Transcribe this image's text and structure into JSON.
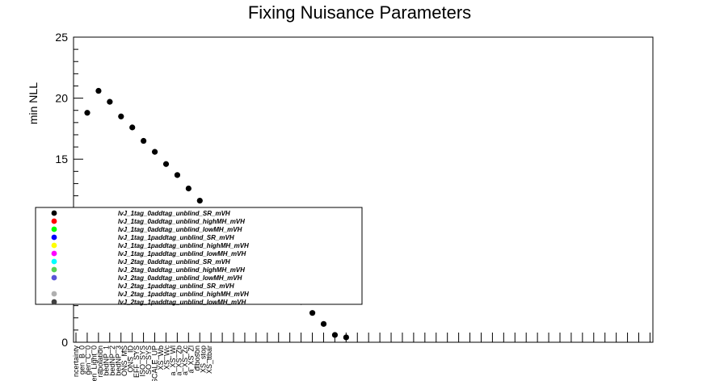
{
  "chart_data": {
    "type": "scatter",
    "title": "Fixing Nuisance Parameters",
    "ylabel": "min NLL",
    "xlabel": "",
    "ylim": [
      0,
      25
    ],
    "yticks": [
      0,
      5,
      10,
      15,
      20,
      25
    ],
    "categories": [
      "ncertainty",
      "gen_B_0",
      "gen_C_0",
      "gen_Light_0",
      "rapolation",
      "bedNP_1",
      "bedNP_2",
      "bedNP_3",
      "ONS_MS",
      "ONS_ID",
      "EFF_SYS",
      "ISO_SYS",
      "SO_SYS",
      "SCALE_UP",
      "XS_Wb",
      "XS_Wc",
      "a_XS_Wl",
      "a_XS_Zb",
      "a_XS_Zc",
      "a_XS_Zl",
      "diboson",
      "XS_stop",
      "XS_ttbar"
    ],
    "series": [
      {
        "name": "lvJ_1tag_0addtag_unblind_SR_mVH",
        "color": "#000000",
        "points": [
          [
            0,
            18.8
          ],
          [
            1,
            20.6
          ],
          [
            2,
            19.7
          ],
          [
            3,
            18.5
          ],
          [
            4,
            17.6
          ],
          [
            5,
            16.5
          ],
          [
            6,
            15.6
          ],
          [
            7,
            14.6
          ],
          [
            8,
            13.7
          ],
          [
            9,
            12.6
          ],
          [
            10,
            11.6
          ],
          [
            11,
            10.6
          ],
          [
            12,
            9.7
          ],
          [
            13,
            8.8
          ],
          [
            14,
            7.8
          ],
          [
            15,
            6.9
          ],
          [
            16,
            6.0
          ],
          [
            17,
            5.1
          ],
          [
            18,
            4.2
          ],
          [
            19,
            3.3
          ],
          [
            20,
            2.4
          ],
          [
            21,
            1.5
          ],
          [
            22,
            0.6
          ],
          [
            23,
            0.4
          ]
        ]
      },
      {
        "name": "lvJ_1tag_0addtag_unblind_highMH_mVH",
        "color": "#ff0000",
        "points": []
      },
      {
        "name": "lvJ_1tag_0addtag_unblind_lowMH_mVH",
        "color": "#00ff00",
        "points": []
      },
      {
        "name": "lvJ_1tag_1paddtag_unblind_SR_mVH",
        "color": "#0000ff",
        "points": []
      },
      {
        "name": "lvJ_1tag_1paddtag_unblind_highMH_mVH",
        "color": "#ffff00",
        "points": []
      },
      {
        "name": "lvJ_1tag_1paddtag_unblind_lowMH_mVH",
        "color": "#ff00ff",
        "points": []
      },
      {
        "name": "lvJ_2tag_0addtag_unblind_SR_mVH",
        "color": "#00ffff",
        "points": []
      },
      {
        "name": "lvJ_2tag_0addtag_unblind_highMH_mVH",
        "color": "#59d354",
        "points": []
      },
      {
        "name": "lvJ_2tag_0addtag_unblind_lowMH_mVH",
        "color": "#5954d8",
        "points": []
      },
      {
        "name": "lvJ_2tag_1paddtag_unblind_SR_mVH",
        "color": "#ffffff",
        "points": []
      },
      {
        "name": "lvJ_2tag_1paddtag_unblind_highMH_mVH",
        "color": "#b0b0b0",
        "points": []
      },
      {
        "name": "lvJ_2tag_1paddtag_unblind_lowMH_mVH",
        "color": "#404040",
        "points": []
      }
    ],
    "legend_position": "middle-left",
    "grid": false
  }
}
